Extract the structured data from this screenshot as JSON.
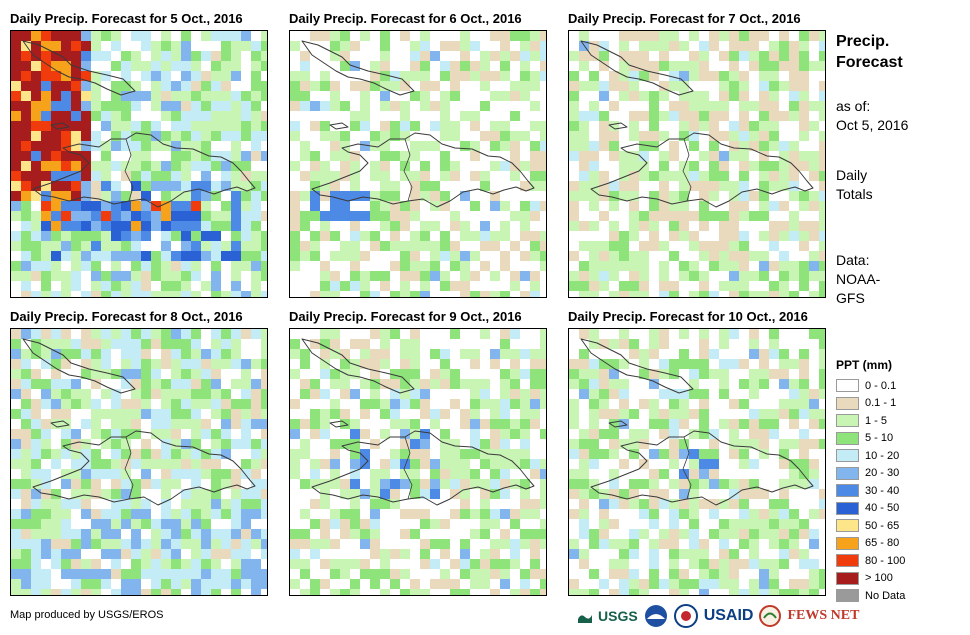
{
  "panels": [
    {
      "title": "Daily Precip. Forecast for 5 Oct., 2016",
      "seed": 11,
      "profile": "oct5"
    },
    {
      "title": "Daily Precip. Forecast for 6 Oct., 2016",
      "seed": 23,
      "profile": "oct6"
    },
    {
      "title": "Daily Precip. Forecast for 7 Oct., 2016",
      "seed": 37,
      "profile": "oct7"
    },
    {
      "title": "Daily Precip. Forecast for 8 Oct., 2016",
      "seed": 41,
      "profile": "oct8"
    },
    {
      "title": "Daily Precip. Forecast for 9 Oct., 2016",
      "seed": 53,
      "profile": "oct9"
    },
    {
      "title": "Daily Precip. Forecast for 10 Oct., 2016",
      "seed": 67,
      "profile": "oct10"
    }
  ],
  "sidebar": {
    "title_line1": "Precip.",
    "title_line2": "Forecast",
    "asof_label": "as of:",
    "asof_date": "Oct 5, 2016",
    "totals_line1": "Daily",
    "totals_line2": "Totals",
    "data_line1": "Data:",
    "data_line2": "NOAA-",
    "data_line3": "GFS"
  },
  "legend": {
    "title": "PPT (mm)",
    "items": [
      {
        "label": "0 - 0.1",
        "color": "#ffffff"
      },
      {
        "label": "0.1 - 1",
        "color": "#e9d9bd"
      },
      {
        "label": "1 - 5",
        "color": "#c8f4b4"
      },
      {
        "label": "5 - 10",
        "color": "#8ee47a"
      },
      {
        "label": "10 - 20",
        "color": "#c4ecf6"
      },
      {
        "label": "20 - 30",
        "color": "#82b5ee"
      },
      {
        "label": "30 - 40",
        "color": "#4d8ae6"
      },
      {
        "label": "40 - 50",
        "color": "#2a62d6"
      },
      {
        "label": "50 - 65",
        "color": "#fde68a"
      },
      {
        "label": "65 - 80",
        "color": "#f7a21b"
      },
      {
        "label": "80 - 100",
        "color": "#f03c0c"
      },
      {
        "label": "> 100",
        "color": "#a71d1d"
      },
      {
        "label": "No Data",
        "color": "#9a9a9a"
      }
    ]
  },
  "footer": {
    "credit": "Map produced by USGS/EROS",
    "logo_usgs": "USGS",
    "logo_usaid": "USAID",
    "logo_fewsnet": "FEWS NET"
  }
}
